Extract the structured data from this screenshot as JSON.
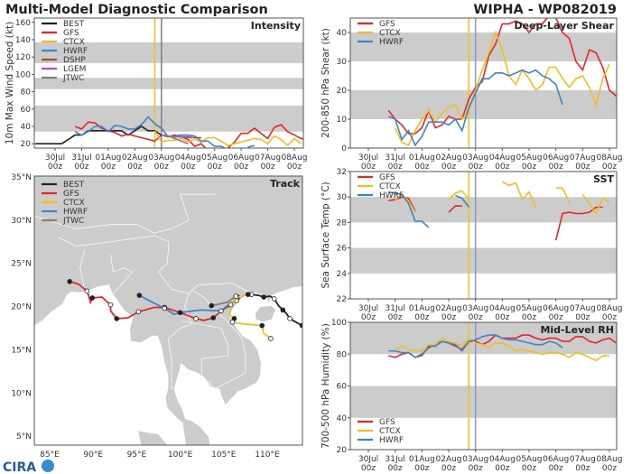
{
  "title": "Multi-Model Diagnostic Comparison",
  "storm": "WIPHA - WP082019",
  "logo_text": "CIRA",
  "colors": {
    "BEST": "#222222",
    "GFS": "#e8242a",
    "CTCX": "#f0c020",
    "HWRF": "#3a86c8",
    "DSHP": "#a0522d",
    "LGEM": "#b04fc0",
    "JTWC": "#808080",
    "band": "#cccccc",
    "land": "#cccccc"
  },
  "chart_data": [
    {
      "id": "intensity",
      "type": "line",
      "panel_label": "Intensity",
      "ylabel": "10m Max Wind Speed (kt)",
      "ylim": [
        15,
        165
      ],
      "yticks": [
        20,
        40,
        60,
        80,
        100,
        120,
        140,
        160
      ],
      "bands": [
        [
          34,
          64
        ],
        [
          83,
          96
        ],
        [
          113,
          137
        ]
      ],
      "xticks": [
        "30Jul 00z",
        "31Jul 00z",
        "01Aug 00z",
        "02Aug 00z",
        "03Aug 00z",
        "04Aug 00z",
        "05Aug 00z",
        "06Aug 00z",
        "07Aug 00z",
        "08Aug 00z"
      ],
      "step_hours": 6,
      "vlines": [
        {
          "time": "02Aug 18z",
          "color": "#f0c020"
        },
        {
          "time": "03Aug 00z",
          "color": "#8a7a8a"
        }
      ],
      "legend": [
        "BEST",
        "GFS",
        "CTCX",
        "HWRF",
        "DSHP",
        "LGEM",
        "JTWC"
      ],
      "legend_pos": "top-left",
      "series": [
        {
          "name": "BEST",
          "start": "29Jul 06z",
          "values": [
            20,
            20,
            20,
            20,
            20,
            25,
            30,
            30,
            35,
            35,
            35,
            35,
            35,
            35,
            30,
            35,
            40,
            35,
            35,
            30
          ]
        },
        {
          "name": "GFS",
          "start": "30Jul 18z",
          "values": [
            40,
            37,
            45,
            44,
            38,
            35,
            33,
            29,
            31,
            29,
            27,
            25,
            23,
            30,
            28,
            30,
            28,
            25,
            17,
            20,
            12,
            null,
            null,
            15,
            22,
            32,
            32,
            38,
            32,
            26,
            39,
            42,
            34,
            30,
            26,
            25
          ]
        },
        {
          "name": "CTCX",
          "start": "02Aug 18z",
          "values": [
            35,
            22,
            24,
            24,
            26,
            22,
            25,
            22,
            27,
            27,
            23,
            18,
            20,
            22,
            24,
            26,
            25,
            20,
            29,
            25,
            18,
            26,
            20
          ]
        },
        {
          "name": "HWRF",
          "start": "30Jul 18z",
          "values": [
            34,
            30,
            34,
            40,
            40,
            34,
            41,
            40,
            37,
            37,
            42,
            51,
            43,
            38,
            28,
            29,
            30,
            30,
            29,
            23,
            23,
            17,
            17,
            13,
            null,
            null,
            16,
            18
          ]
        },
        {
          "name": "DSHP",
          "start": "03Aug 00z",
          "values": [
            30,
            29,
            28,
            28,
            28,
            27,
            27
          ]
        },
        {
          "name": "LGEM",
          "start": "03Aug 00z",
          "values": [
            30,
            29,
            28,
            28,
            27,
            27
          ]
        },
        {
          "name": "JTWC",
          "start": "03Aug 00z",
          "values": [
            30,
            29,
            26,
            23,
            20
          ]
        }
      ]
    },
    {
      "id": "shear",
      "type": "line",
      "panel_label": "Deep-Layer Shear",
      "ylabel": "200-850 hPa Shear (kt)",
      "ylim": [
        0,
        45
      ],
      "yticks": [
        0,
        10,
        20,
        30,
        40
      ],
      "bands": [
        [
          10,
          20
        ],
        [
          30,
          40
        ]
      ],
      "xticks": [
        "30Jul 00z",
        "31Jul 00z",
        "01Aug 00z",
        "02Aug 00z",
        "03Aug 00z",
        "04Aug 00z",
        "05Aug 00z",
        "06Aug 00z",
        "07Aug 00z",
        "08Aug 00z"
      ],
      "step_hours": 6,
      "vlines": [
        {
          "time": "02Aug 18z",
          "color": "#f0c020"
        },
        {
          "time": "03Aug 00z",
          "color": "#8a9ac0"
        }
      ],
      "legend": [
        "GFS",
        "CTCX",
        "HWRF"
      ],
      "legend_pos": "top-left",
      "series": [
        {
          "name": "GFS",
          "start": "30Jul 18z",
          "values": [
            13,
            10,
            8,
            5,
            5,
            7,
            13,
            7,
            8,
            11,
            10,
            10,
            17,
            21,
            23,
            32,
            36,
            43,
            43,
            44,
            43,
            40,
            43,
            43,
            46,
            45,
            40,
            38,
            30,
            27,
            34,
            33,
            28,
            20,
            18
          ]
        },
        {
          "name": "CTCX",
          "start": "31Jul 00z",
          "values": [
            7,
            2,
            1,
            6,
            10,
            13,
            9,
            12,
            14,
            15,
            10,
            13,
            20,
            27,
            33,
            40,
            34,
            25,
            22,
            27,
            24,
            20,
            22,
            28,
            28,
            24,
            21,
            24,
            25,
            21,
            15,
            24,
            29
          ]
        },
        {
          "name": "HWRF",
          "start": "30Jul 18z",
          "values": [
            11,
            10,
            3,
            6,
            1,
            4,
            9,
            9,
            9,
            8,
            10,
            6,
            14,
            19,
            24,
            24,
            26,
            26,
            25,
            26,
            27,
            26,
            27,
            25,
            24,
            22,
            15
          ]
        }
      ]
    },
    {
      "id": "sst",
      "type": "line",
      "panel_label": "SST",
      "ylabel": "Sea Surface Temp (°C)",
      "ylim": [
        22,
        32
      ],
      "yticks": [
        22,
        24,
        26,
        28,
        30,
        32
      ],
      "bands": [
        [
          24,
          26
        ],
        [
          28,
          30
        ],
        [
          32,
          33
        ]
      ],
      "xticks": [
        "30Jul 00z",
        "31Jul 00z",
        "01Aug 00z",
        "02Aug 00z",
        "03Aug 00z",
        "04Aug 00z",
        "05Aug 00z",
        "06Aug 00z",
        "07Aug 00z",
        "08Aug 00z"
      ],
      "step_hours": 6,
      "vlines": [
        {
          "time": "02Aug 18z",
          "color": "#f0c020"
        },
        {
          "time": "03Aug 00z",
          "color": "#8a9ac0"
        }
      ],
      "legend": [
        "GFS",
        "CTCX",
        "HWRF"
      ],
      "legend_pos": "top-left",
      "series": [
        {
          "name": "GFS",
          "start": "30Jul 18z",
          "values": [
            29.7,
            29.8,
            30.0,
            29.9,
            28.9,
            null,
            null,
            null,
            null,
            28.8,
            29.3,
            29.3,
            null,
            null,
            null,
            null,
            null,
            null,
            null,
            null,
            null,
            null,
            null,
            null,
            null,
            26.6,
            28.7,
            28.8,
            28.7,
            28.7,
            28.8,
            29.2,
            29.2
          ]
        },
        {
          "name": "CTCX",
          "start": "31Jul 00z",
          "values": [
            29.8,
            30.2,
            29.7,
            28.8,
            null,
            null,
            null,
            null,
            29.8,
            30.3,
            30.5,
            29.8,
            null,
            null,
            null,
            null,
            31.2,
            30.9,
            31.1,
            29.8,
            30.4,
            29.2,
            null,
            null,
            30.7,
            30.7,
            29.6,
            null,
            30.2,
            29.5,
            28.7,
            29.9,
            29.6
          ]
        },
        {
          "name": "HWRF",
          "start": "30Jul 18z",
          "values": [
            30.4,
            30.3,
            30.2,
            29.5,
            28.1,
            28.1,
            27.6,
            null,
            null,
            null,
            30.1,
            29.9,
            29.2
          ]
        }
      ]
    },
    {
      "id": "rh",
      "type": "line",
      "panel_label": "Mid-Level RH",
      "ylabel": "700-500 hPa Humidity (%)",
      "ylim": [
        20,
        100
      ],
      "yticks": [
        20,
        40,
        60,
        80,
        100
      ],
      "bands": [
        [
          40,
          60
        ],
        [
          80,
          100
        ]
      ],
      "xticks": [
        "30Jul 00z",
        "31Jul 00z",
        "01Aug 00z",
        "02Aug 00z",
        "03Aug 00z",
        "04Aug 00z",
        "05Aug 00z",
        "06Aug 00z",
        "07Aug 00z",
        "08Aug 00z"
      ],
      "step_hours": 6,
      "vlines": [
        {
          "time": "02Aug 18z",
          "color": "#f0c020"
        },
        {
          "time": "03Aug 00z",
          "color": "#8a9ac0"
        }
      ],
      "legend": [
        "GFS",
        "CTCX",
        "HWRF"
      ],
      "legend_pos": "bottom-left",
      "series": [
        {
          "name": "GFS",
          "start": "30Jul 18z",
          "values": [
            79,
            78,
            80,
            81,
            78,
            80,
            84,
            86,
            88,
            87,
            85,
            83,
            88,
            88,
            86,
            88,
            92,
            90,
            90,
            90,
            92,
            92,
            90,
            89,
            90,
            90,
            88,
            88,
            91,
            91,
            88,
            87,
            89,
            90,
            87
          ]
        },
        {
          "name": "CTCX",
          "start": "31Jul 00z",
          "values": [
            83,
            85,
            83,
            82,
            82,
            86,
            86,
            90,
            88,
            87,
            85,
            90,
            87,
            86,
            84,
            87,
            87,
            85,
            82,
            83,
            82,
            81,
            80,
            81,
            81,
            80,
            78,
            81,
            80,
            78,
            76,
            79,
            79
          ]
        },
        {
          "name": "HWRF",
          "start": "30Jul 18z",
          "values": [
            82,
            82,
            81,
            81,
            78,
            79,
            85,
            85,
            88,
            87,
            86,
            82,
            88,
            89,
            91,
            92,
            92,
            90,
            89,
            89,
            88,
            87,
            86,
            86,
            88,
            87,
            84
          ]
        }
      ]
    },
    {
      "id": "track",
      "type": "map",
      "panel_label": "Track",
      "lat_ticks": [
        "5°N",
        "10°N",
        "15°N",
        "20°N",
        "25°N",
        "30°N",
        "35°N"
      ],
      "lon_ticks": [
        "85°E",
        "90°E",
        "95°E",
        "100°E",
        "105°E",
        "110°E"
      ],
      "legend": [
        "BEST",
        "GFS",
        "CTCX",
        "HWRF",
        "JTWC"
      ],
      "legend_pos": "top-left",
      "tracks": [
        {
          "name": "BEST",
          "points": [
            [
              114,
              17.8
            ],
            [
              113.3,
              18.2
            ],
            [
              112.6,
              18.6
            ],
            [
              112.2,
              19.2
            ],
            [
              111.8,
              19.6
            ],
            [
              111.3,
              20.1
            ],
            [
              110.8,
              20.9
            ],
            [
              110.3,
              21.2
            ],
            [
              109.6,
              21.1
            ],
            [
              109,
              21.3
            ],
            [
              108.2,
              21.4
            ],
            [
              107.5,
              21.3
            ]
          ]
        },
        {
          "name": "GFS",
          "points": [
            [
              87.3,
              22.9
            ],
            [
              88.3,
              22.6
            ],
            [
              89.3,
              21.8
            ],
            [
              89.7,
              20.5
            ],
            [
              89.9,
              21.0
            ],
            [
              91,
              21.1
            ],
            [
              92,
              20.2
            ],
            [
              92,
              19.5
            ],
            [
              92.7,
              18.6
            ],
            [
              94,
              18.7
            ],
            [
              95.2,
              19.4
            ],
            [
              97,
              19.9
            ],
            [
              98.2,
              19.9
            ],
            [
              100,
              19.3
            ],
            [
              101.8,
              18.6
            ],
            [
              102.7,
              18.4
            ],
            [
              103.8,
              18.7
            ],
            [
              105.3,
              20.0
            ],
            [
              106.5,
              20.7
            ]
          ]
        },
        {
          "name": "HWRF",
          "points": [
            [
              95.3,
              21.3
            ],
            [
              96.6,
              20.6
            ],
            [
              98.2,
              19.8
            ],
            [
              99.3,
              19.1
            ],
            [
              100,
              19.3
            ],
            [
              102.3,
              19.6
            ],
            [
              104.7,
              19.5
            ],
            [
              105.7,
              20.1
            ],
            [
              106.6,
              21.1
            ]
          ]
        },
        {
          "name": "CTCX",
          "points": [
            [
              107.8,
              21.4
            ],
            [
              106.7,
              21.1
            ],
            [
              105.8,
              20.2
            ],
            [
              105.6,
              19.1
            ],
            [
              106.2,
              18.6
            ],
            [
              106.4,
              19.0
            ],
            [
              106,
              18.2
            ],
            [
              107.2,
              18.0
            ],
            [
              109.4,
              17.8
            ],
            [
              109.6,
              16.9
            ],
            [
              110.4,
              16.3
            ]
          ]
        },
        {
          "name": "JTWC",
          "points": [
            [
              103.6,
              20.1
            ],
            [
              105.4,
              20.5
            ],
            [
              106.4,
              21.2
            ]
          ]
        }
      ]
    }
  ]
}
